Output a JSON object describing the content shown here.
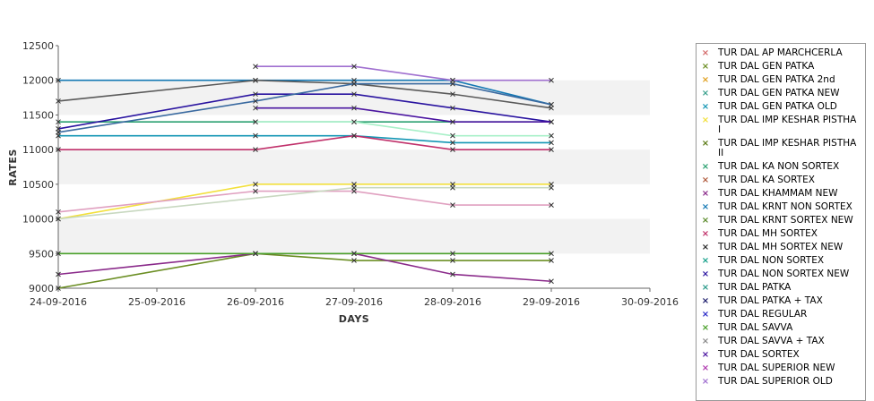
{
  "chart_data": {
    "type": "line",
    "title": "",
    "xlabel": "DAYS",
    "ylabel": "RATES",
    "x_ticks": [
      "24-09-2016",
      "25-09-2016",
      "26-09-2016",
      "27-09-2016",
      "28-09-2016",
      "29-09-2016",
      "30-09-2016"
    ],
    "y_ticks": [
      "9000",
      "9500",
      "10000",
      "10500",
      "11000",
      "11500",
      "12000",
      "12500"
    ],
    "xlim": [
      "24-09-2016",
      "30-09-2016"
    ],
    "ylim": [
      9000,
      12500
    ],
    "grid": "alternating horizontal bands",
    "legend_position": "right",
    "series": [
      {
        "name": "TUR DAL AP MARCHCERLA",
        "color": "#d46a6a",
        "x": [],
        "values": []
      },
      {
        "name": "TUR DAL GEN PATKA",
        "color": "#6b8e23",
        "x": [
          "24-09-2016",
          "26-09-2016",
          "27-09-2016",
          "28-09-2016",
          "29-09-2016"
        ],
        "values": [
          9000,
          9500,
          9400,
          9400,
          9400
        ]
      },
      {
        "name": "TUR DAL GEN PATKA 2nd",
        "color": "#e0a020",
        "x": [],
        "values": []
      },
      {
        "name": "TUR DAL GEN PATKA NEW",
        "color": "#3aa08c",
        "x": [],
        "values": []
      },
      {
        "name": "TUR DAL GEN PATKA OLD",
        "color": "#1496b4",
        "x": [
          "24-09-2016",
          "26-09-2016",
          "27-09-2016",
          "28-09-2016",
          "29-09-2016"
        ],
        "values": [
          11200,
          11200,
          11200,
          11100,
          11100
        ]
      },
      {
        "name": "TUR DAL IMP KESHAR PISTHA I",
        "color": "#f2e03c",
        "x": [
          "24-09-2016",
          "26-09-2016",
          "27-09-2016",
          "28-09-2016",
          "29-09-2016"
        ],
        "values": [
          10000,
          10500,
          10500,
          10500,
          10500
        ]
      },
      {
        "name": "TUR DAL IMP KESHAR PISTHA II",
        "color": "#5a7a14",
        "x": [],
        "values": []
      },
      {
        "name": "TUR DAL KA NON SORTEX",
        "color": "#2aa070",
        "x": [
          "24-09-2016",
          "26-09-2016",
          "27-09-2016",
          "28-09-2016",
          "29-09-2016"
        ],
        "values": [
          11400,
          11400,
          11400,
          11400,
          11400
        ]
      },
      {
        "name": "TUR DAL KA SORTEX",
        "color": "#b05a3c",
        "x": [],
        "values": []
      },
      {
        "name": "TUR DAL KHAMMAM NEW",
        "color": "#8a2a8a",
        "x": [
          "24-09-2016",
          "26-09-2016",
          "27-09-2016",
          "28-09-2016",
          "29-09-2016"
        ],
        "values": [
          9200,
          9500,
          9500,
          9200,
          9100
        ]
      },
      {
        "name": "TUR DAL KRNT NON SORTEX",
        "color": "#1478b4",
        "x": [
          "24-09-2016",
          "26-09-2016",
          "27-09-2016",
          "28-09-2016",
          "29-09-2016"
        ],
        "values": [
          12000,
          12000,
          12000,
          12000,
          11650
        ]
      },
      {
        "name": "TUR DAL KRNT SORTEX NEW",
        "color": "#5a8a2a",
        "x": [],
        "values": []
      },
      {
        "name": "TUR DAL MH SORTEX",
        "color": "#c0306a",
        "x": [
          "24-09-2016",
          "26-09-2016",
          "27-09-2016",
          "28-09-2016",
          "29-09-2016"
        ],
        "values": [
          11000,
          11000,
          11200,
          11000,
          11000
        ]
      },
      {
        "name": "TUR DAL MH SORTEX NEW",
        "color": "#2a2a2a",
        "x": [],
        "values": []
      },
      {
        "name": "TUR DAL NON SORTEX",
        "color": "#14a08a",
        "x": [],
        "values": []
      },
      {
        "name": "TUR DAL NON SORTEX NEW",
        "color": "#2a14a0",
        "x": [
          "24-09-2016",
          "26-09-2016",
          "27-09-2016",
          "28-09-2016",
          "29-09-2016"
        ],
        "values": [
          11300,
          11800,
          11800,
          11600,
          11400
        ]
      },
      {
        "name": "TUR DAL PATKA",
        "color": "#2a9a8a",
        "x": [],
        "values": []
      },
      {
        "name": "TUR DAL PATKA + TAX",
        "color": "#1a1a6a",
        "x": [],
        "values": []
      },
      {
        "name": "TUR DAL REGULAR",
        "color": "#2a2ac8",
        "x": [],
        "values": []
      },
      {
        "name": "TUR DAL SAVVA",
        "color": "#4aa02a",
        "x": [
          "24-09-2016",
          "26-09-2016",
          "27-09-2016",
          "28-09-2016",
          "29-09-2016"
        ],
        "values": [
          9500,
          9500,
          9500,
          9500,
          9500
        ]
      },
      {
        "name": "TUR DAL SAVVA + TAX",
        "color": "#8a8a8a",
        "x": [],
        "values": []
      },
      {
        "name": "TUR DAL SORTEX",
        "color": "#4a14a0",
        "x": [
          "26-09-2016",
          "27-09-2016",
          "28-09-2016",
          "29-09-2016"
        ],
        "values": [
          11600,
          11600,
          11400,
          11400
        ]
      },
      {
        "name": "TUR DAL SUPERIOR NEW",
        "color": "#b03ab0",
        "x": [],
        "values": []
      },
      {
        "name": "TUR DAL SUPERIOR OLD",
        "color": "#a070d0",
        "x": [
          "26-09-2016",
          "27-09-2016",
          "28-09-2016",
          "29-09-2016"
        ],
        "values": [
          12200,
          12200,
          12000,
          12000
        ]
      },
      {
        "name": "",
        "color": "#5a5a5a",
        "x": [
          "24-09-2016",
          "26-09-2016",
          "27-09-2016",
          "28-09-2016",
          "29-09-2016"
        ],
        "values": [
          11700,
          12000,
          11950,
          11800,
          11600
        ]
      },
      {
        "name": "",
        "color": "#3a6aa0",
        "x": [
          "24-09-2016",
          "26-09-2016",
          "27-09-2016",
          "28-09-2016",
          "29-09-2016"
        ],
        "values": [
          11250,
          11700,
          11950,
          11950,
          11650
        ]
      },
      {
        "name": "",
        "color": "#a8f0c8",
        "x": [
          "26-09-2016",
          "27-09-2016",
          "28-09-2016",
          "29-09-2016"
        ],
        "values": [
          11400,
          11400,
          11200,
          11200
        ]
      },
      {
        "name": "",
        "color": "#e0a0c0",
        "x": [
          "24-09-2016",
          "26-09-2016",
          "27-09-2016",
          "28-09-2016",
          "29-09-2016"
        ],
        "values": [
          10100,
          10400,
          10400,
          10200,
          10200
        ]
      },
      {
        "name": "",
        "color": "#c8d8c0",
        "x": [
          "24-09-2016",
          "27-09-2016",
          "28-09-2016",
          "29-09-2016"
        ],
        "values": [
          10000,
          10450,
          10450,
          10450
        ]
      }
    ]
  }
}
